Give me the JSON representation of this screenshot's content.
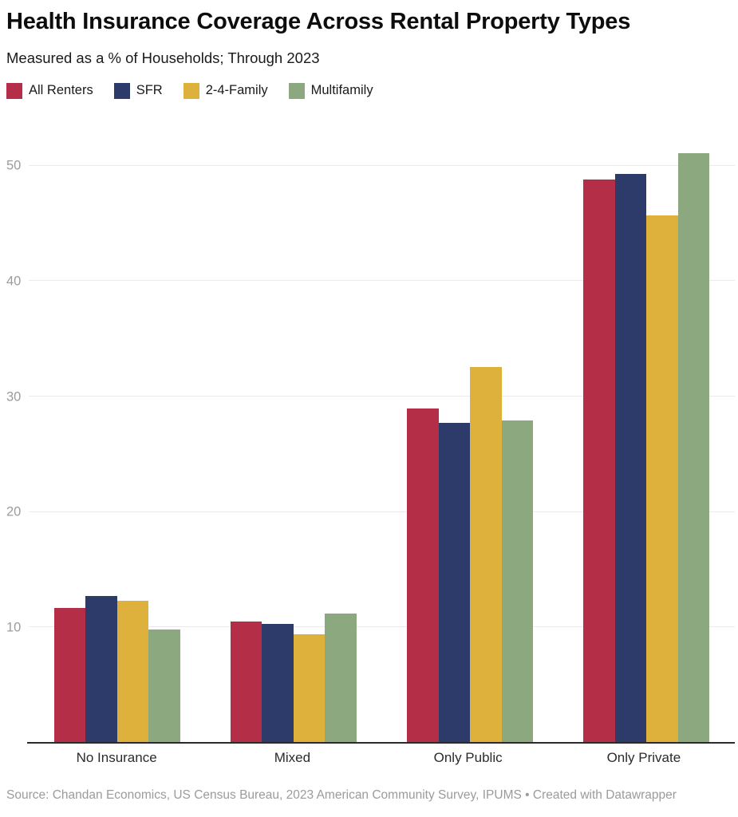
{
  "header": {
    "title": "Health Insurance Coverage Across Rental Property Types",
    "subtitle": "Measured as a % of Households; Through 2023"
  },
  "footer": {
    "source": "Source: Chandan Economics, US Census Bureau, 2023 American Community Survey, IPUMS • Created with Datawrapper"
  },
  "colors": {
    "all_renters": "#b32e46",
    "sfr": "#2c3b6a",
    "two_four_family": "#ddb13c",
    "multifamily": "#8ca87e",
    "gridline": "#ebebeb",
    "axis_line": "#2b2b2b",
    "tick_label": "#9c9c9c",
    "category_label": "#2b2b2b",
    "source_text": "#9b9b9b"
  },
  "chart_data": {
    "type": "bar",
    "title": "Health Insurance Coverage Across Rental Property Types",
    "subtitle": "Measured as a % of Households; Through 2023",
    "categories": [
      "No Insurance",
      "Mixed",
      "Only Public",
      "Only Private"
    ],
    "series": [
      {
        "name": "All Renters",
        "color": "#b32e46",
        "values": [
          11.7,
          10.5,
          29.0,
          48.8
        ]
      },
      {
        "name": "SFR",
        "color": "#2c3b6a",
        "values": [
          12.7,
          10.3,
          27.7,
          49.3
        ]
      },
      {
        "name": "2-4-Family",
        "color": "#ddb13c",
        "values": [
          12.3,
          9.4,
          32.6,
          45.7
        ]
      },
      {
        "name": "Multifamily",
        "color": "#8ca87e",
        "values": [
          9.8,
          11.2,
          27.9,
          51.1
        ]
      }
    ],
    "xlabel": "",
    "ylabel": "",
    "yticks": [
      10,
      20,
      30,
      40,
      50
    ],
    "ylim": [
      0,
      54
    ],
    "grid": true,
    "legend_position": "top",
    "units": "% of households"
  }
}
